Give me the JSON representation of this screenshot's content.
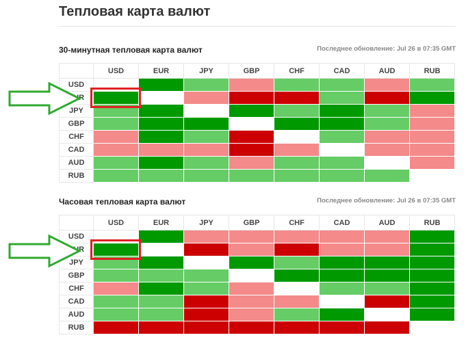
{
  "page_title": "Тепловая карта валют",
  "colors": {
    "strong_up": "#009900",
    "up": "#66cc66",
    "neutral": "#ffffff",
    "down": "#f48a8a",
    "strong_down": "#cc0000",
    "annotation_arrow": "#2faa2f",
    "annotation_box": "#e02020"
  },
  "legend_codes": {
    "G": "strong_up",
    "g": "up",
    "N": "neutral",
    "r": "down",
    "R": "strong_down"
  },
  "heatmaps": [
    {
      "title": "30-минутная тепловая карта валют",
      "updated": "Последнее обновление: Jul 26 в 07:35 GMT",
      "columns": [
        "USD",
        "EUR",
        "JPY",
        "GBP",
        "CHF",
        "CAD",
        "AUD",
        "RUB"
      ],
      "rows": [
        {
          "label": "USD",
          "cells": [
            "N",
            "G",
            "g",
            "r",
            "g",
            "g",
            "r",
            "g"
          ]
        },
        {
          "label": "EUR",
          "cells": [
            "G",
            "N",
            "r",
            "R",
            "R",
            "g",
            "R",
            "G"
          ]
        },
        {
          "label": "JPY",
          "cells": [
            "g",
            "G",
            "N",
            "G",
            "g",
            "G",
            "g",
            "r"
          ]
        },
        {
          "label": "GBP",
          "cells": [
            "g",
            "G",
            "G",
            "N",
            "G",
            "G",
            "g",
            "r"
          ]
        },
        {
          "label": "CHF",
          "cells": [
            "r",
            "G",
            "g",
            "R",
            "N",
            "g",
            "r",
            "r"
          ]
        },
        {
          "label": "CAD",
          "cells": [
            "r",
            "r",
            "r",
            "R",
            "r",
            "N",
            "r",
            "r"
          ]
        },
        {
          "label": "AUD",
          "cells": [
            "g",
            "G",
            "g",
            "r",
            "g",
            "g",
            "N",
            "r"
          ]
        },
        {
          "label": "RUB",
          "cells": [
            "g",
            "g",
            "g",
            "g",
            "g",
            "g",
            "g",
            "N"
          ]
        }
      ]
    },
    {
      "title": "Часовая тепловая карта валют",
      "updated": "Последнее обновление: Jul 26 в 07:35 GMT",
      "columns": [
        "USD",
        "EUR",
        "JPY",
        "GBP",
        "CHF",
        "CAD",
        "AUD",
        "RUB"
      ],
      "rows": [
        {
          "label": "USD",
          "cells": [
            "N",
            "G",
            "r",
            "r",
            "r",
            "r",
            "r",
            "G"
          ]
        },
        {
          "label": "EUR",
          "cells": [
            "G",
            "N",
            "R",
            "r",
            "R",
            "r",
            "r",
            "G"
          ]
        },
        {
          "label": "JPY",
          "cells": [
            "g",
            "G",
            "N",
            "G",
            "g",
            "G",
            "G",
            "G"
          ]
        },
        {
          "label": "GBP",
          "cells": [
            "g",
            "g",
            "g",
            "N",
            "G",
            "G",
            "G",
            "G"
          ]
        },
        {
          "label": "CHF",
          "cells": [
            "r",
            "G",
            "g",
            "r",
            "N",
            "g",
            "g",
            "G"
          ]
        },
        {
          "label": "CAD",
          "cells": [
            "g",
            "g",
            "R",
            "r",
            "r",
            "N",
            "R",
            "G"
          ]
        },
        {
          "label": "AUD",
          "cells": [
            "g",
            "g",
            "R",
            "r",
            "g",
            "G",
            "N",
            "G"
          ]
        },
        {
          "label": "RUB",
          "cells": [
            "R",
            "R",
            "R",
            "R",
            "R",
            "R",
            "R",
            "N"
          ]
        }
      ]
    }
  ]
}
